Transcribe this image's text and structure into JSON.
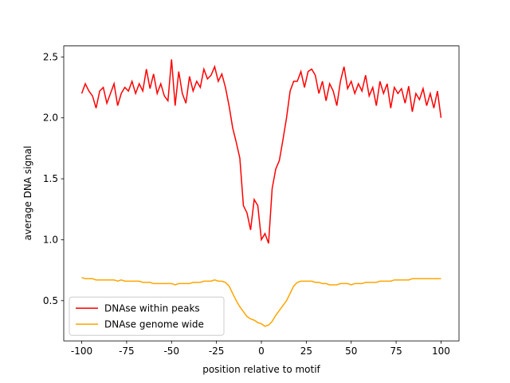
{
  "chart_data": {
    "type": "line",
    "xlabel": "position relative to motif",
    "ylabel": "average DNA signal",
    "x": [
      -100,
      -98,
      -96,
      -94,
      -92,
      -90,
      -88,
      -86,
      -84,
      -82,
      -80,
      -78,
      -76,
      -74,
      -72,
      -70,
      -68,
      -66,
      -64,
      -62,
      -60,
      -58,
      -56,
      -54,
      -52,
      -50,
      -48,
      -46,
      -44,
      -42,
      -40,
      -38,
      -36,
      -34,
      -32,
      -30,
      -28,
      -26,
      -24,
      -22,
      -20,
      -18,
      -16,
      -14,
      -12,
      -10,
      -8,
      -6,
      -4,
      -2,
      0,
      2,
      4,
      6,
      8,
      10,
      12,
      14,
      16,
      18,
      20,
      22,
      24,
      26,
      28,
      30,
      32,
      34,
      36,
      38,
      40,
      42,
      44,
      46,
      48,
      50,
      52,
      54,
      56,
      58,
      60,
      62,
      64,
      66,
      68,
      70,
      72,
      74,
      76,
      78,
      80,
      82,
      84,
      86,
      88,
      90,
      92,
      94,
      96,
      98,
      100
    ],
    "series": [
      {
        "name": "DNAse within peaks",
        "color": "#ff0000",
        "values": [
          2.2,
          2.28,
          2.22,
          2.18,
          2.08,
          2.22,
          2.25,
          2.12,
          2.2,
          2.28,
          2.1,
          2.2,
          2.25,
          2.22,
          2.3,
          2.2,
          2.28,
          2.22,
          2.4,
          2.24,
          2.36,
          2.2,
          2.28,
          2.18,
          2.14,
          2.48,
          2.1,
          2.38,
          2.2,
          2.12,
          2.34,
          2.22,
          2.3,
          2.25,
          2.4,
          2.32,
          2.35,
          2.42,
          2.3,
          2.36,
          2.25,
          2.1,
          1.92,
          1.8,
          1.67,
          1.28,
          1.22,
          1.08,
          1.33,
          1.28,
          1.0,
          1.05,
          0.97,
          1.42,
          1.58,
          1.65,
          1.82,
          2.0,
          2.22,
          2.3,
          2.3,
          2.38,
          2.25,
          2.38,
          2.4,
          2.35,
          2.2,
          2.3,
          2.14,
          2.28,
          2.22,
          2.1,
          2.3,
          2.42,
          2.24,
          2.3,
          2.2,
          2.28,
          2.22,
          2.35,
          2.18,
          2.25,
          2.1,
          2.3,
          2.2,
          2.28,
          2.08,
          2.25,
          2.2,
          2.24,
          2.12,
          2.26,
          2.05,
          2.2,
          2.15,
          2.24,
          2.1,
          2.2,
          2.08,
          2.22,
          2.0
        ]
      },
      {
        "name": "DNAse genome wide",
        "color": "#ffa500",
        "values": [
          0.69,
          0.68,
          0.68,
          0.68,
          0.67,
          0.67,
          0.67,
          0.67,
          0.67,
          0.67,
          0.66,
          0.67,
          0.66,
          0.66,
          0.66,
          0.66,
          0.66,
          0.65,
          0.65,
          0.65,
          0.64,
          0.64,
          0.64,
          0.64,
          0.64,
          0.64,
          0.63,
          0.64,
          0.64,
          0.64,
          0.64,
          0.65,
          0.65,
          0.65,
          0.66,
          0.66,
          0.66,
          0.67,
          0.66,
          0.66,
          0.65,
          0.62,
          0.56,
          0.5,
          0.45,
          0.41,
          0.37,
          0.35,
          0.34,
          0.32,
          0.31,
          0.29,
          0.3,
          0.33,
          0.38,
          0.42,
          0.46,
          0.5,
          0.56,
          0.62,
          0.65,
          0.66,
          0.66,
          0.66,
          0.66,
          0.65,
          0.65,
          0.64,
          0.64,
          0.63,
          0.63,
          0.63,
          0.64,
          0.64,
          0.64,
          0.63,
          0.64,
          0.64,
          0.64,
          0.65,
          0.65,
          0.65,
          0.65,
          0.66,
          0.66,
          0.66,
          0.66,
          0.67,
          0.67,
          0.67,
          0.67,
          0.67,
          0.68,
          0.68,
          0.68,
          0.68,
          0.68,
          0.68,
          0.68,
          0.68,
          0.68
        ]
      }
    ],
    "xlim": [
      -110,
      110
    ],
    "xticks": [
      -100,
      -75,
      -50,
      -25,
      0,
      25,
      50,
      75,
      100
    ],
    "ylim": [
      0.17,
      2.59
    ],
    "yticks": [
      0.5,
      {
        "value": 1,
        "label": "1.0"
      },
      1.5,
      {
        "value": 2,
        "label": "2.0"
      },
      2.5
    ],
    "legend": "lower left"
  }
}
